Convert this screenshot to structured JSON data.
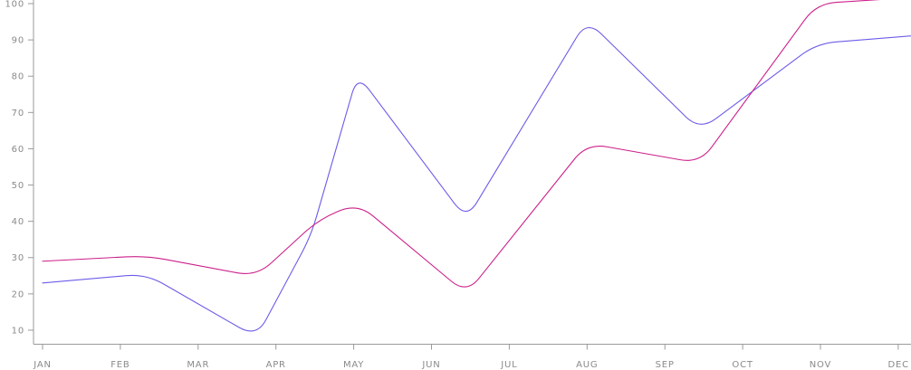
{
  "chart_data": {
    "type": "line",
    "categories": [
      "JAN",
      "FEB",
      "MAR",
      "APR",
      "MAY",
      "JUN",
      "JUL",
      "AUG",
      "SEP",
      "OCT",
      "NOV",
      "DEC"
    ],
    "x": [
      0,
      1.33,
      2.6,
      3.4,
      4.0,
      5.45,
      6.9,
      8.45,
      9.95,
      11.5
    ],
    "series": [
      {
        "color": "#6c5ce7",
        "x": [
          0,
          1.33,
          2.75,
          3.45,
          4.05,
          5.45,
          7.0,
          8.45,
          9.95,
          11.4
        ],
        "values": [
          23,
          25.5,
          8,
          36,
          80.5,
          40.5,
          95.5,
          65,
          89,
          91.5
        ]
      },
      {
        "color": "#cc1f8a",
        "x": [
          0,
          1.33,
          2.75,
          3.55,
          4.05,
          5.45,
          7.0,
          8.45,
          9.95,
          11.4
        ],
        "values": [
          29,
          30.5,
          24.8,
          40.5,
          45,
          20,
          61.5,
          56,
          100,
          102
        ]
      }
    ],
    "yticks": [
      10,
      20,
      30,
      40,
      50,
      60,
      70,
      80,
      90,
      100
    ],
    "ylim": [
      6,
      101
    ],
    "xlim": [
      -0.13,
      11.2
    ],
    "grid": false,
    "xlabel": "",
    "ylabel": ""
  }
}
